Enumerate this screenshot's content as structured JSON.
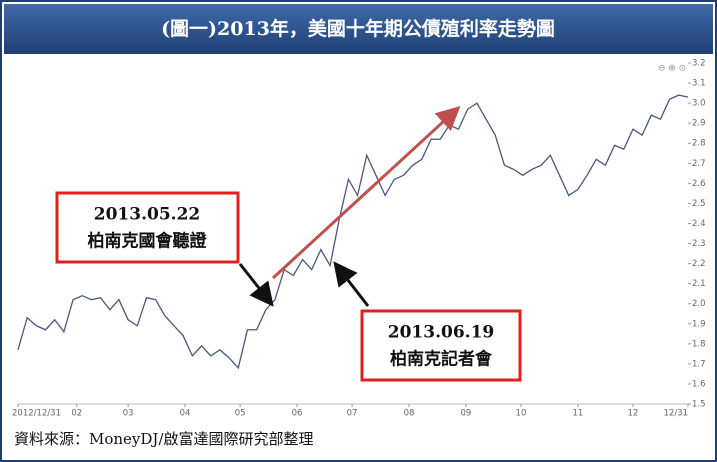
{
  "chart_data": {
    "type": "line",
    "title": "(圖一)2013年，美國十年期公債殖利率走勢圖",
    "source": "資料來源：MoneyDJ/啟富達國際研究部整理",
    "annotations": [
      {
        "date": "2013.05.22",
        "label": "柏南克國會聽證"
      },
      {
        "date": "2013.06.19",
        "label": "柏南克記者會"
      }
    ],
    "x": [
      0,
      5,
      10,
      15,
      20,
      25,
      30,
      35,
      40,
      45,
      50,
      55,
      60,
      65,
      70,
      75,
      80,
      85,
      90,
      95,
      100,
      105,
      110,
      115,
      120,
      125,
      130,
      135,
      140,
      145,
      150,
      155,
      160,
      165,
      170,
      175,
      180,
      185,
      190,
      195,
      200,
      205,
      210,
      215,
      220,
      225,
      230,
      235,
      240,
      245,
      250,
      255,
      260,
      265,
      270,
      275,
      280,
      285,
      290,
      295,
      300,
      305,
      310,
      315,
      320,
      325,
      330,
      335,
      340,
      345,
      350,
      355,
      360,
      365
    ],
    "series": [
      {
        "color": "#4a5878",
        "values": [
          1.77,
          1.93,
          1.89,
          1.87,
          1.92,
          1.86,
          2.02,
          2.04,
          2.02,
          2.03,
          1.97,
          2.02,
          1.92,
          1.89,
          2.03,
          2.02,
          1.94,
          1.89,
          1.84,
          1.74,
          1.79,
          1.74,
          1.77,
          1.73,
          1.68,
          1.87,
          1.87,
          1.97,
          2.02,
          2.17,
          2.14,
          2.22,
          2.17,
          2.27,
          2.19,
          2.42,
          2.62,
          2.54,
          2.74,
          2.64,
          2.54,
          2.62,
          2.64,
          2.69,
          2.72,
          2.82,
          2.82,
          2.89,
          2.87,
          2.97,
          3.0,
          2.92,
          2.84,
          2.69,
          2.67,
          2.64,
          2.67,
          2.69,
          2.74,
          2.64,
          2.54,
          2.57,
          2.64,
          2.72,
          2.69,
          2.79,
          2.77,
          2.87,
          2.84,
          2.94,
          2.92,
          3.02,
          3.04,
          3.03
        ]
      }
    ],
    "xlim": [
      0,
      365
    ],
    "xticks": [
      {
        "value": 0,
        "label": "2012/12/31"
      },
      {
        "value": 32,
        "label": "02"
      },
      {
        "value": 60,
        "label": "03"
      },
      {
        "value": 91,
        "label": "04"
      },
      {
        "value": 121,
        "label": "05"
      },
      {
        "value": 152,
        "label": "06"
      },
      {
        "value": 182,
        "label": "07"
      },
      {
        "value": 213,
        "label": "08"
      },
      {
        "value": 244,
        "label": "09"
      },
      {
        "value": 274,
        "label": "10"
      },
      {
        "value": 305,
        "label": "11"
      },
      {
        "value": 335,
        "label": "12"
      },
      {
        "value": 365,
        "label": "12/31"
      }
    ],
    "ylim": [
      1.5,
      3.2
    ],
    "yticks": [
      1.5,
      1.6,
      1.7,
      1.8,
      1.9,
      {
        "value": 2,
        "label": "2.0"
      },
      2.1,
      2.2,
      2.3,
      2.4,
      2.5,
      2.6,
      2.7,
      2.8,
      2.9,
      {
        "value": 3,
        "label": "3.0"
      },
      3.1,
      3.2
    ],
    "grid": false
  }
}
